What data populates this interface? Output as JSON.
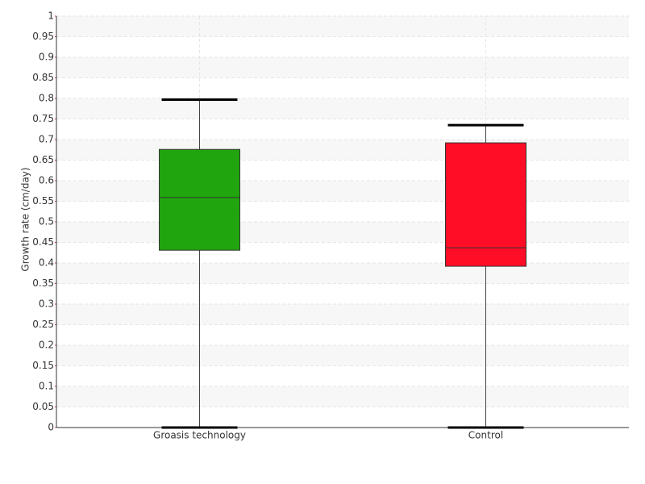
{
  "chart_data": {
    "type": "box",
    "y_label": "Growth rate (cm/day)",
    "categories": [
      "Groasis technology",
      "Control"
    ],
    "boxes": [
      {
        "min": 0,
        "q1": 0.431,
        "median": 0.559,
        "q3": 0.676,
        "max": 0.797,
        "color": "#21a50f"
      },
      {
        "min": 0,
        "q1": 0.392,
        "median": 0.437,
        "q3": 0.692,
        "max": 0.735,
        "color": "#ff0d26"
      }
    ],
    "ylim": [
      0,
      1
    ],
    "yticks": [
      0,
      0.05,
      0.1,
      0.15,
      0.2,
      0.25,
      0.3,
      0.35,
      0.4,
      0.45,
      0.5,
      0.55,
      0.6,
      0.65,
      0.7,
      0.75,
      0.8,
      0.85,
      0.9,
      0.95,
      1
    ],
    "grid": true
  }
}
